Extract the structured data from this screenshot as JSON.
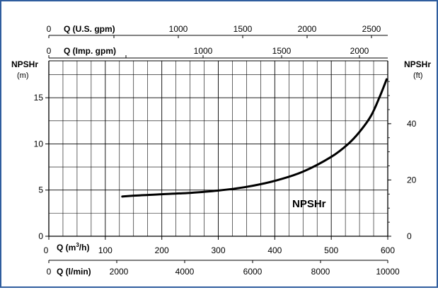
{
  "chart_data": {
    "type": "line",
    "title": "",
    "grid": true,
    "x_primary": {
      "label": "Q (m³/h)",
      "label_main": "Q (m",
      "label_sup": "3",
      "label_tail": "/h)",
      "min": 0,
      "max": 600,
      "ticks": [
        "0",
        "100",
        "200",
        "300",
        "400",
        "500",
        "600"
      ]
    },
    "x_top_us": {
      "label": "Q (U.S. gpm)",
      "ticks": [
        "0",
        "1000",
        "1500",
        "2000",
        "2500"
      ]
    },
    "x_top_imp": {
      "label": "Q (Imp. gpm)",
      "ticks": [
        "0",
        "1000",
        "1500",
        "2000"
      ]
    },
    "x_bottom_lmin": {
      "label": "Q (l/min)",
      "ticks": [
        "0",
        "2000",
        "4000",
        "6000",
        "8000",
        "10000"
      ]
    },
    "y_left": {
      "label": "NPSHr",
      "unit": "(m)",
      "min": 0,
      "max": 19,
      "ticks": [
        "0",
        "5",
        "10",
        "15"
      ]
    },
    "y_right": {
      "label": "NPSHr",
      "unit": "(ft)",
      "ticks": [
        "0",
        "20",
        "40"
      ]
    },
    "series": [
      {
        "name": "NPSHr",
        "color": "#000000",
        "points": [
          [
            130,
            4.3
          ],
          [
            150,
            4.4
          ],
          [
            200,
            4.55
          ],
          [
            250,
            4.7
          ],
          [
            300,
            4.95
          ],
          [
            350,
            5.35
          ],
          [
            400,
            6.0
          ],
          [
            450,
            7.0
          ],
          [
            500,
            8.6
          ],
          [
            530,
            10.0
          ],
          [
            550,
            11.3
          ],
          [
            570,
            13.0
          ],
          [
            585,
            15.0
          ],
          [
            598,
            17.0
          ]
        ]
      }
    ],
    "curve_label": "NPSHr"
  }
}
